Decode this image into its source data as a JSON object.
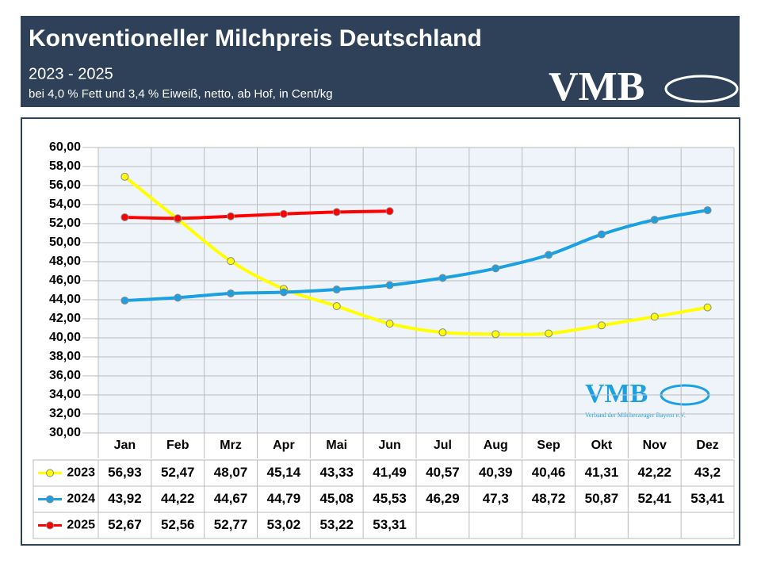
{
  "chart_data": {
    "type": "line",
    "title": "Konventioneller Milchpreis Deutschland",
    "subtitle": "2023 - 2025",
    "note": "bei 4,0 % Fett und 3,4 % Eiweiß, netto, ab Hof, in Cent/kg",
    "logo": "VMB",
    "watermark": "VMB",
    "watermark_caption": "Verband der Milcherzeuger Bayern e.V.",
    "categories": [
      "Jan",
      "Feb",
      "Mrz",
      "Apr",
      "Mai",
      "Jun",
      "Jul",
      "Aug",
      "Sep",
      "Okt",
      "Nov",
      "Dez"
    ],
    "series": [
      {
        "name": "2023",
        "color": "#ffff00",
        "values": [
          56.93,
          52.47,
          48.07,
          45.14,
          43.33,
          41.49,
          40.57,
          40.39,
          40.46,
          41.31,
          42.22,
          43.2
        ],
        "value_labels": [
          "56,93",
          "52,47",
          "48,07",
          "45,14",
          "43,33",
          "41,49",
          "40,57",
          "40,39",
          "40,46",
          "41,31",
          "42,22",
          "43,2"
        ]
      },
      {
        "name": "2024",
        "color": "#1ba1e2",
        "values": [
          43.92,
          44.22,
          44.67,
          44.79,
          45.08,
          45.53,
          46.29,
          47.3,
          48.72,
          50.87,
          52.41,
          53.41
        ],
        "value_labels": [
          "43,92",
          "44,22",
          "44,67",
          "44,79",
          "45,08",
          "45,53",
          "46,29",
          "47,3",
          "48,72",
          "50,87",
          "52,41",
          "53,41"
        ]
      },
      {
        "name": "2025",
        "color": "#ff0000",
        "values": [
          52.67,
          52.56,
          52.77,
          53.02,
          53.22,
          53.31,
          null,
          null,
          null,
          null,
          null,
          null
        ],
        "value_labels": [
          "52,67",
          "52,56",
          "52,77",
          "53,02",
          "53,22",
          "53,31",
          null,
          null,
          null,
          null,
          null,
          null
        ]
      }
    ],
    "ylim": [
      30,
      60
    ],
    "yticks": [
      {
        "value": 30,
        "label": "30,00"
      },
      {
        "value": 32,
        "label": "32,00"
      },
      {
        "value": 34,
        "label": "34,00"
      },
      {
        "value": 36,
        "label": "36,00"
      },
      {
        "value": 38,
        "label": "38,00"
      },
      {
        "value": 40,
        "label": "40,00"
      },
      {
        "value": 42,
        "label": "42,00"
      },
      {
        "value": 44,
        "label": "44,00"
      },
      {
        "value": 46,
        "label": "46,00"
      },
      {
        "value": 48,
        "label": "48,00"
      },
      {
        "value": 50,
        "label": "50,00"
      },
      {
        "value": 52,
        "label": "52,00"
      },
      {
        "value": 54,
        "label": "54,00"
      },
      {
        "value": 56,
        "label": "56,00"
      },
      {
        "value": 58,
        "label": "58,00"
      },
      {
        "value": 60,
        "label": "60,00"
      }
    ],
    "grid": true
  }
}
